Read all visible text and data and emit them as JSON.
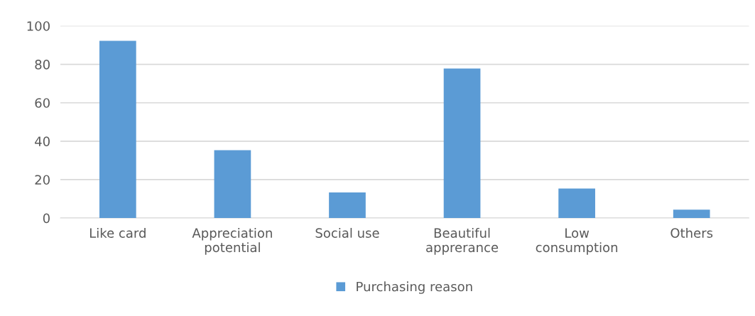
{
  "chart_data": {
    "type": "bar",
    "categories": [
      "Like card",
      "Appreciation\npotential",
      "Social use",
      "Beautiful\napprerance",
      "Low\nconsumption",
      "Others"
    ],
    "series": [
      {
        "name": "Purchasing reason",
        "color": "#5b9bd5",
        "values": [
          92.2,
          35.3,
          13.3,
          77.8,
          15.4,
          4.4
        ]
      }
    ],
    "ylim": [
      0,
      100
    ],
    "yticks": [
      0,
      20,
      40,
      60,
      80,
      100
    ],
    "grid": "y",
    "legend": "bottom"
  }
}
